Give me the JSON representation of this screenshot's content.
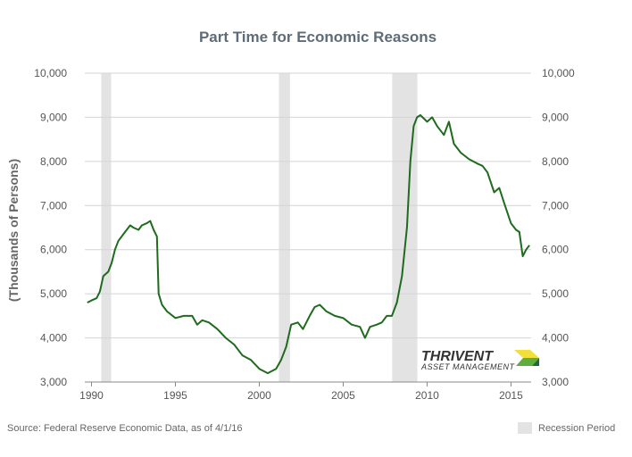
{
  "chart_data": {
    "type": "line",
    "title": "Part Time for Economic Reasons",
    "ylabel": "(Thousands of Persons)",
    "xlabel": "",
    "x_ticks": [
      "1990",
      "1995",
      "2000",
      "2005",
      "2010",
      "2015"
    ],
    "y_ticks_left": [
      "3,000",
      "4,000",
      "5,000",
      "6,000",
      "7,000",
      "8,000",
      "9,000",
      "10,000"
    ],
    "y_ticks_right": [
      "3,000",
      "4,000",
      "5,000",
      "6,000",
      "7,000",
      "8,000",
      "9,000",
      "10,000"
    ],
    "xlim": [
      1989.6,
      2016.2
    ],
    "ylim": [
      3000,
      10000
    ],
    "grid": true,
    "line_color": "#1e6b1e",
    "recession_color": "#e3e3e3",
    "recessions": [
      [
        1990.58,
        1991.17
      ],
      [
        2001.17,
        2001.83
      ],
      [
        2007.92,
        2009.42
      ]
    ],
    "series": [
      {
        "points": [
          [
            1989.75,
            4800
          ],
          [
            1990.0,
            4850
          ],
          [
            1990.3,
            4900
          ],
          [
            1990.5,
            5050
          ],
          [
            1990.7,
            5400
          ],
          [
            1991.0,
            5500
          ],
          [
            1991.2,
            5700
          ],
          [
            1991.4,
            6000
          ],
          [
            1991.6,
            6200
          ],
          [
            1992.0,
            6400
          ],
          [
            1992.3,
            6550
          ],
          [
            1992.5,
            6500
          ],
          [
            1992.8,
            6450
          ],
          [
            1993.0,
            6550
          ],
          [
            1993.3,
            6600
          ],
          [
            1993.5,
            6650
          ],
          [
            1993.7,
            6450
          ],
          [
            1993.9,
            6300
          ],
          [
            1994.0,
            5000
          ],
          [
            1994.2,
            4750
          ],
          [
            1994.5,
            4600
          ],
          [
            1995.0,
            4450
          ],
          [
            1995.5,
            4500
          ],
          [
            1996.0,
            4500
          ],
          [
            1996.3,
            4300
          ],
          [
            1996.6,
            4400
          ],
          [
            1997.0,
            4350
          ],
          [
            1997.5,
            4200
          ],
          [
            1998.0,
            4000
          ],
          [
            1998.5,
            3850
          ],
          [
            1999.0,
            3600
          ],
          [
            1999.5,
            3500
          ],
          [
            2000.0,
            3300
          ],
          [
            2000.5,
            3200
          ],
          [
            2001.0,
            3300
          ],
          [
            2001.3,
            3500
          ],
          [
            2001.6,
            3800
          ],
          [
            2001.9,
            4300
          ],
          [
            2002.3,
            4350
          ],
          [
            2002.6,
            4200
          ],
          [
            2003.0,
            4500
          ],
          [
            2003.3,
            4700
          ],
          [
            2003.6,
            4750
          ],
          [
            2004.0,
            4600
          ],
          [
            2004.5,
            4500
          ],
          [
            2005.0,
            4450
          ],
          [
            2005.5,
            4300
          ],
          [
            2006.0,
            4250
          ],
          [
            2006.3,
            4000
          ],
          [
            2006.6,
            4250
          ],
          [
            2007.0,
            4300
          ],
          [
            2007.3,
            4350
          ],
          [
            2007.6,
            4500
          ],
          [
            2007.9,
            4500
          ],
          [
            2008.2,
            4800
          ],
          [
            2008.5,
            5400
          ],
          [
            2008.8,
            6500
          ],
          [
            2009.0,
            8000
          ],
          [
            2009.2,
            8800
          ],
          [
            2009.4,
            9000
          ],
          [
            2009.6,
            9050
          ],
          [
            2010.0,
            8900
          ],
          [
            2010.3,
            9000
          ],
          [
            2010.6,
            8800
          ],
          [
            2011.0,
            8600
          ],
          [
            2011.3,
            8900
          ],
          [
            2011.6,
            8400
          ],
          [
            2012.0,
            8200
          ],
          [
            2012.5,
            8050
          ],
          [
            2013.0,
            7950
          ],
          [
            2013.3,
            7900
          ],
          [
            2013.6,
            7750
          ],
          [
            2014.0,
            7300
          ],
          [
            2014.3,
            7400
          ],
          [
            2014.6,
            7050
          ],
          [
            2015.0,
            6600
          ],
          [
            2015.3,
            6450
          ],
          [
            2015.5,
            6400
          ],
          [
            2015.7,
            5850
          ],
          [
            2015.9,
            6000
          ],
          [
            2016.1,
            6100
          ]
        ]
      }
    ]
  },
  "footer": {
    "source": "Source: Federal Reserve Economic Data, as of 4/1/16",
    "legend_recession": "Recession Period"
  },
  "logo": {
    "name": "THRIVENT",
    "sub": "ASSET MANAGEMENT",
    "colors": [
      "#f2e03a",
      "#5fae3b",
      "#1e6b3a"
    ]
  }
}
